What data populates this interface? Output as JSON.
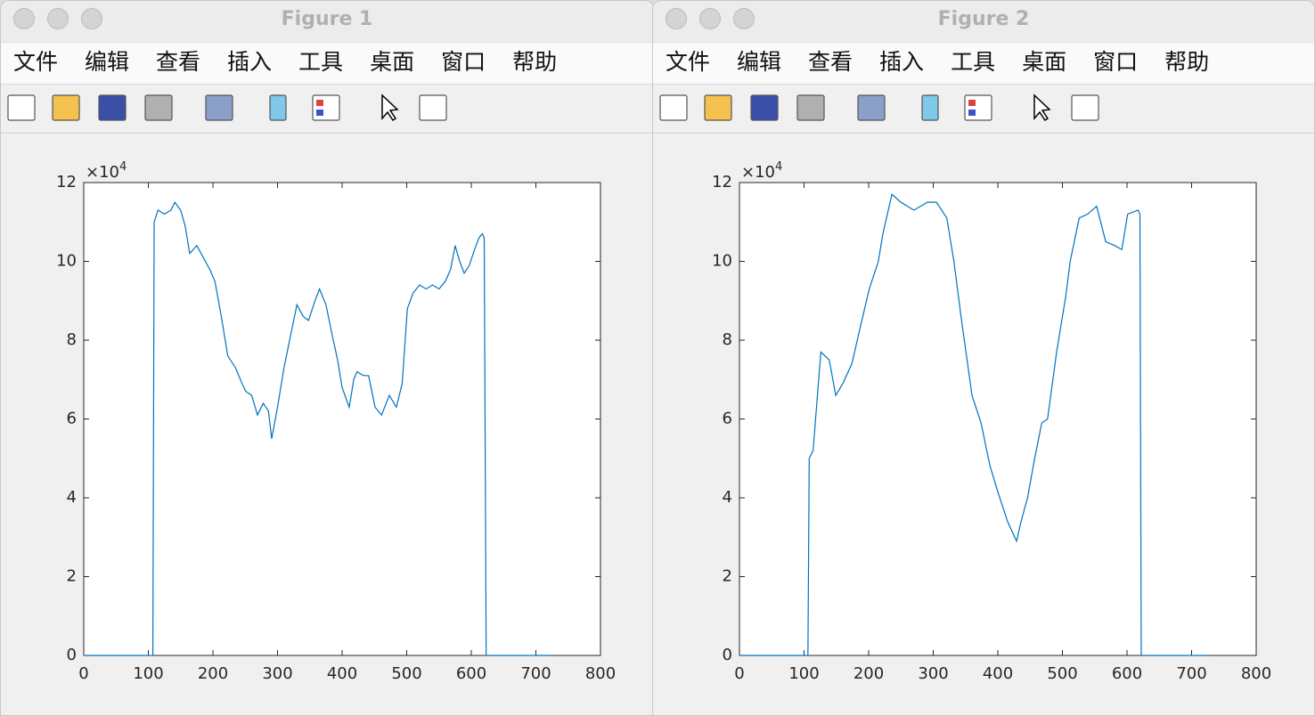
{
  "windows": [
    {
      "title": "Figure 1",
      "menu": [
        "文件",
        "编辑",
        "查看",
        "插入",
        "工具",
        "桌面",
        "窗口",
        "帮助"
      ]
    },
    {
      "title": "Figure 2",
      "menu": [
        "文件",
        "编辑",
        "查看",
        "插入",
        "工具",
        "桌面",
        "窗口",
        "帮助"
      ]
    }
  ],
  "chart_data": [
    {
      "type": "line",
      "y_scale_label": "×10",
      "y_scale_exponent": "4",
      "xlim": [
        0,
        800
      ],
      "xticks": [
        0,
        100,
        200,
        300,
        400,
        500,
        600,
        700,
        800
      ],
      "ylim": [
        0,
        12
      ],
      "yticks": [
        0,
        2,
        4,
        6,
        8,
        10,
        12
      ],
      "x": [
        0,
        107,
        109,
        115,
        125,
        135,
        141,
        150,
        157,
        164,
        175,
        185,
        195,
        203,
        213,
        223,
        235,
        245,
        251,
        260,
        269,
        278,
        286,
        291,
        300,
        310,
        320,
        330,
        340,
        348,
        358,
        365,
        375,
        385,
        393,
        400,
        411,
        418,
        423,
        433,
        441,
        451,
        461,
        473,
        484,
        493,
        501,
        510,
        520,
        530,
        540,
        550,
        560,
        568,
        575,
        582,
        589,
        597,
        605,
        612,
        617,
        620,
        623,
        725
      ],
      "series": [
        {
          "color": "#0072bd",
          "values": [
            0,
            0,
            11.0,
            11.3,
            11.2,
            11.3,
            11.5,
            11.3,
            10.9,
            10.2,
            10.4,
            10.1,
            9.8,
            9.5,
            8.6,
            7.6,
            7.3,
            6.9,
            6.7,
            6.6,
            6.1,
            6.4,
            6.2,
            5.5,
            6.3,
            7.3,
            8.1,
            8.9,
            8.6,
            8.5,
            9.0,
            9.3,
            8.9,
            8.1,
            7.5,
            6.8,
            6.3,
            7.0,
            7.2,
            7.1,
            7.1,
            6.3,
            6.1,
            6.6,
            6.3,
            6.9,
            8.8,
            9.2,
            9.4,
            9.3,
            9.4,
            9.3,
            9.5,
            9.8,
            10.4,
            10.0,
            9.7,
            9.9,
            10.3,
            10.6,
            10.7,
            10.6,
            0,
            0
          ]
        }
      ]
    },
    {
      "type": "line",
      "y_scale_label": "×10",
      "y_scale_exponent": "4",
      "xlim": [
        0,
        800
      ],
      "xticks": [
        0,
        100,
        200,
        300,
        400,
        500,
        600,
        700,
        800
      ],
      "ylim": [
        0,
        12
      ],
      "yticks": [
        0,
        2,
        4,
        6,
        8,
        10,
        12
      ],
      "x": [
        0,
        106,
        108,
        114,
        126,
        139,
        149,
        160,
        174,
        188,
        201,
        215,
        222,
        236,
        250,
        270,
        291,
        305,
        321,
        332,
        343,
        360,
        374,
        388,
        401,
        415,
        429,
        436,
        446,
        457,
        468,
        477,
        491,
        505,
        512,
        526,
        539,
        553,
        567,
        581,
        592,
        601,
        617,
        620,
        622,
        728
      ],
      "series": [
        {
          "color": "#0072bd",
          "values": [
            0,
            0,
            5.0,
            5.2,
            7.7,
            7.5,
            6.6,
            6.9,
            7.4,
            8.4,
            9.3,
            10.0,
            10.7,
            11.7,
            11.5,
            11.3,
            11.5,
            11.5,
            11.1,
            10.0,
            8.6,
            6.6,
            5.9,
            4.8,
            4.1,
            3.4,
            2.9,
            3.4,
            4.0,
            5.0,
            5.9,
            6.0,
            7.7,
            9.1,
            10.0,
            11.1,
            11.2,
            11.4,
            10.5,
            10.4,
            10.3,
            11.2,
            11.3,
            11.2,
            0,
            0
          ]
        }
      ]
    }
  ]
}
